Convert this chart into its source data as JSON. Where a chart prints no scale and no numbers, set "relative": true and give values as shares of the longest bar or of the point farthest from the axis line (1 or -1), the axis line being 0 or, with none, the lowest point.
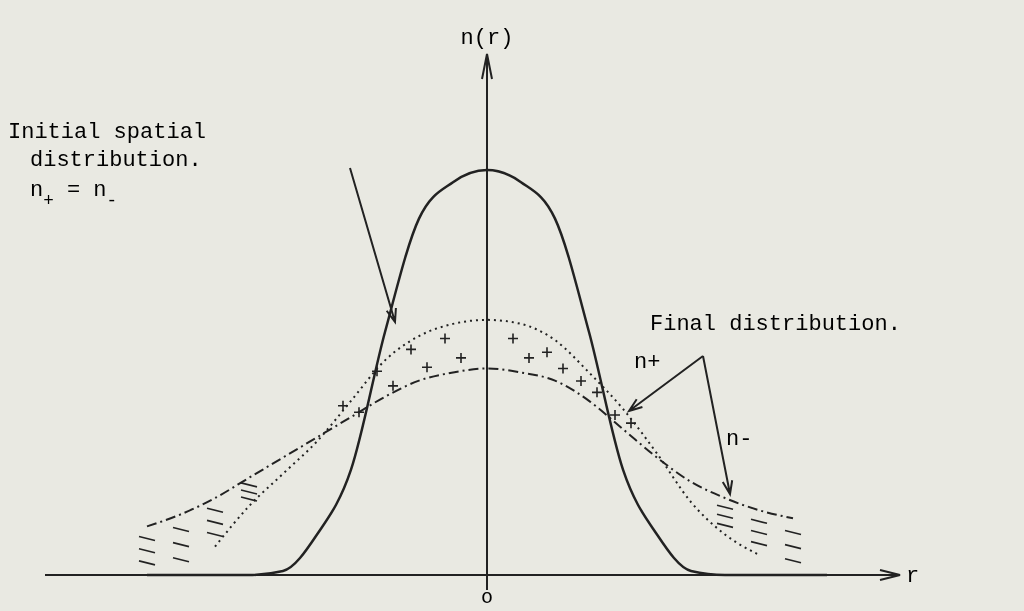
{
  "chart_data": {
    "type": "line",
    "relative": true,
    "xlabel": "r",
    "categories": [
      null,
      null,
      null,
      null,
      null,
      null,
      null,
      null,
      null,
      null,
      null,
      null,
      null,
      null,
      null,
      null,
      null,
      null,
      null,
      null,
      null
    ],
    "series": [
      {
        "color": "#222222",
        "line_style": "solid",
        "values": [
          0,
          0,
          0,
          0,
          0.01,
          0.1,
          0.26,
          0.6,
          0.88,
          0.97,
          1,
          0.97,
          0.88,
          0.6,
          0.26,
          0.1,
          0.01,
          0,
          0,
          0,
          0
        ]
      },
      {
        "name": "n+",
        "color": "#222222",
        "line_style": "dotted",
        "values": [
          null,
          null,
          0.07,
          0.17,
          0.25,
          0.33,
          0.43,
          0.53,
          0.59,
          0.62,
          0.63,
          0.62,
          0.58,
          0.5,
          0.41,
          0.3,
          0.18,
          0.1,
          0.05,
          null,
          null
        ]
      },
      {
        "name": "n-",
        "color": "#222222",
        "line_style": "dashed",
        "values": [
          0.12,
          0.15,
          0.19,
          0.24,
          0.29,
          0.34,
          0.39,
          0.44,
          0.48,
          0.5,
          0.51,
          0.5,
          0.48,
          0.43,
          0.36,
          0.29,
          0.23,
          0.19,
          0.16,
          0.14,
          null
        ]
      }
    ],
    "annotations": [
      "Initial spatial distribution.",
      "n$_{+}$ = n$_{-}$",
      "Final distribution.",
      "o",
      "n(r)"
    ],
    "legend": false,
    "marker": "none"
  }
}
